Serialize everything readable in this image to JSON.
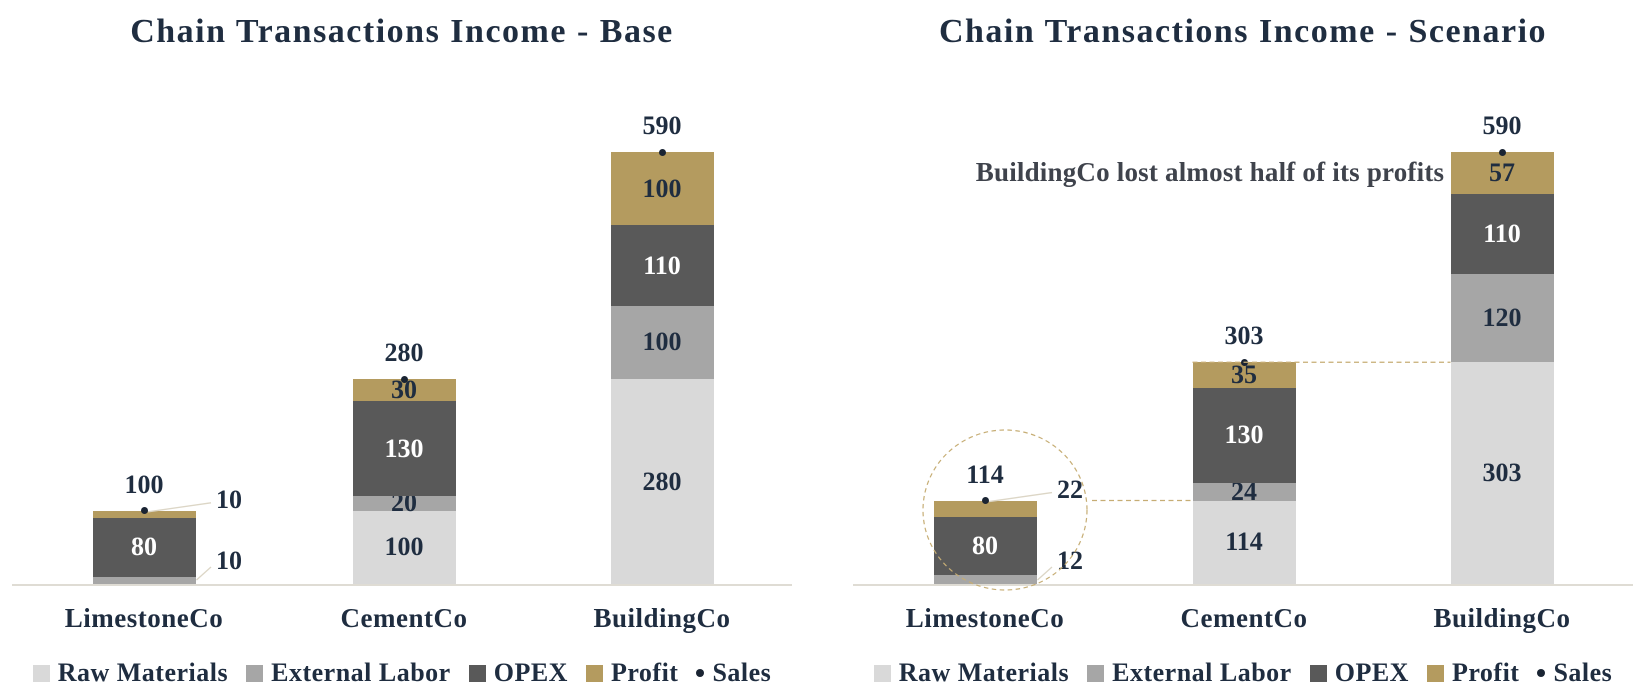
{
  "colors": {
    "text": "#1f2d40",
    "white_label": "#ffffff",
    "sales_marker": "#1a2433",
    "dashed_accent": "#c6ad74",
    "leader_line": "#dcd6c6",
    "axis_line": "#dfdcd4",
    "annotation_text": "#3f434c"
  },
  "chart_data": [
    {
      "type": "bar",
      "stacked": true,
      "title": "Chain Transactions Income - Base",
      "categories": [
        "LimestoneCo",
        "CementCo",
        "BuildingCo"
      ],
      "series": [
        {
          "name": "Raw Materials",
          "color": "#d9d9d9",
          "values": [
            0,
            100,
            280
          ]
        },
        {
          "name": "External Labor",
          "color": "#a6a6a6",
          "values": [
            10,
            20,
            100
          ]
        },
        {
          "name": "OPEX",
          "color": "#595959",
          "values": [
            80,
            130,
            110
          ]
        },
        {
          "name": "Profit",
          "color": "#b49b5f",
          "values": [
            10,
            30,
            100
          ]
        }
      ],
      "totals": [
        100,
        280,
        590
      ],
      "marker_series": "Sales",
      "legend": [
        "Raw Materials",
        "External Labor",
        "OPEX",
        "Profit",
        "Sales"
      ],
      "legend_position": "bottom",
      "ylim": [
        0,
        590
      ],
      "gridlines": false,
      "callouts": [
        {
          "category": "LimestoneCo",
          "series": "External Labor",
          "value": 10
        },
        {
          "category": "LimestoneCo",
          "series": "Profit",
          "value": 10
        }
      ]
    },
    {
      "type": "bar",
      "stacked": true,
      "title": "Chain Transactions Income - Scenario",
      "annotation": "BuildingCo lost almost half of its profits",
      "categories": [
        "LimestoneCo",
        "CementCo",
        "BuildingCo"
      ],
      "series": [
        {
          "name": "Raw Materials",
          "color": "#d9d9d9",
          "values": [
            0,
            114,
            303
          ]
        },
        {
          "name": "External Labor",
          "color": "#a6a6a6",
          "values": [
            12,
            24,
            120
          ]
        },
        {
          "name": "OPEX",
          "color": "#595959",
          "values": [
            80,
            130,
            110
          ]
        },
        {
          "name": "Profit",
          "color": "#b49b5f",
          "values": [
            22,
            35,
            57
          ]
        }
      ],
      "totals": [
        114,
        303,
        590
      ],
      "marker_series": "Sales",
      "legend": [
        "Raw Materials",
        "External Labor",
        "OPEX",
        "Profit",
        "Sales"
      ],
      "legend_position": "bottom",
      "ylim": [
        0,
        590
      ],
      "gridlines": false,
      "callouts": [
        {
          "category": "LimestoneCo",
          "series": "External Labor",
          "value": 12
        },
        {
          "category": "LimestoneCo",
          "series": "Profit",
          "value": 22
        }
      ],
      "connectors": [
        {
          "from": "LimestoneCo",
          "to": "CementCo",
          "level": 114
        },
        {
          "from": "CementCo",
          "to": "BuildingCo",
          "level": 303
        }
      ],
      "highlight_circle": {
        "around": "LimestoneCo"
      }
    }
  ]
}
